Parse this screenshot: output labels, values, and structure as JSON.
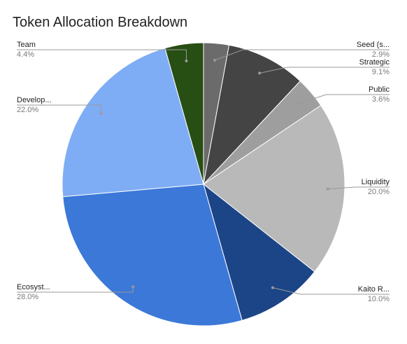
{
  "chart_data": {
    "type": "pie",
    "title": "Token Allocation Breakdown",
    "slices": [
      {
        "label": "Seed (s...",
        "value": 2.9,
        "display": "2.9%",
        "color": "#6b6b6b",
        "side": "right"
      },
      {
        "label": "Strategic",
        "value": 9.1,
        "display": "9.1%",
        "color": "#444444",
        "side": "right"
      },
      {
        "label": "Public",
        "value": 3.6,
        "display": "3.6%",
        "color": "#9e9e9e",
        "side": "right"
      },
      {
        "label": "Liquidity",
        "value": 20.0,
        "display": "20.0%",
        "color": "#b9b9b9",
        "side": "right"
      },
      {
        "label": "Kaito R...",
        "value": 10.0,
        "display": "10.0%",
        "color": "#1c4587",
        "side": "right"
      },
      {
        "label": "Ecosyst...",
        "value": 28.0,
        "display": "28.0%",
        "color": "#3c78d8",
        "side": "left"
      },
      {
        "label": "Develop...",
        "value": 22.0,
        "display": "22.0%",
        "color": "#7fadf5",
        "side": "left"
      },
      {
        "label": "Team",
        "value": 4.4,
        "display": "4.4%",
        "color": "#274e13",
        "side": "left"
      }
    ]
  }
}
